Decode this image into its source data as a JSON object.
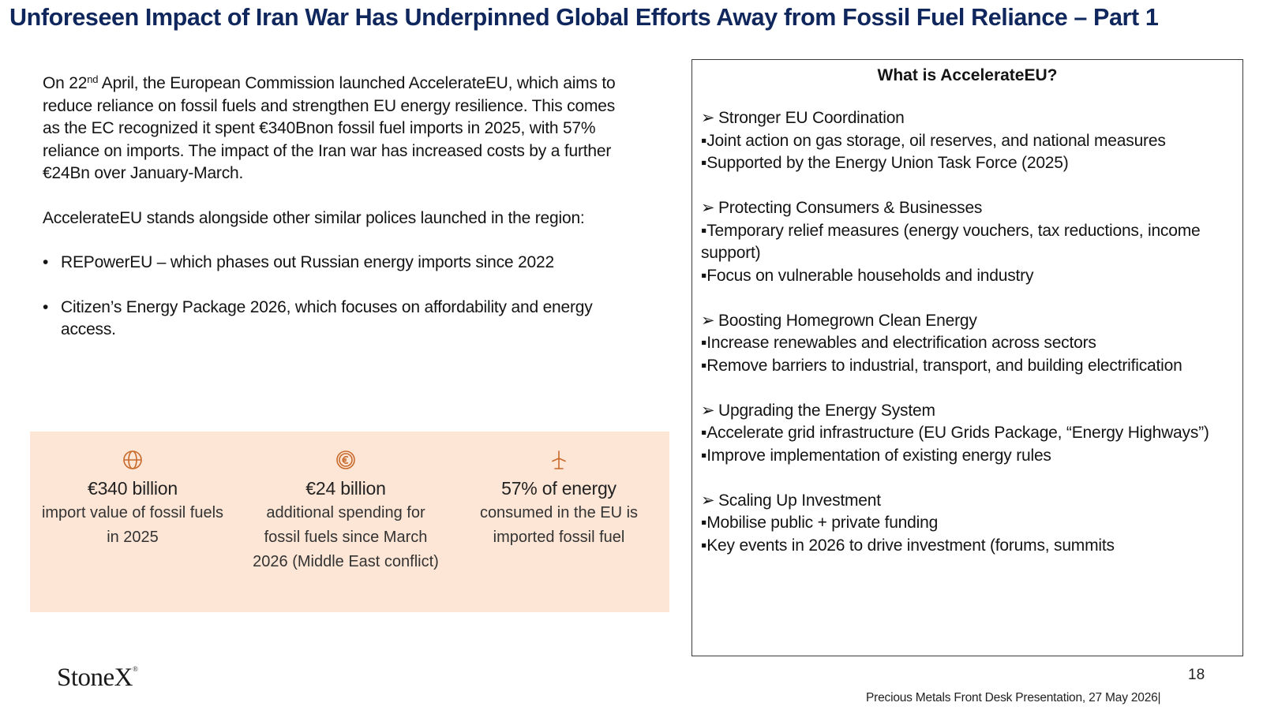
{
  "title": "Unforeseen Impact of Iran War Has Underpinned Global Efforts Away from Fossil Fuel Reliance – Part 1",
  "left": {
    "para1_a": "On 22",
    "para1_sup": "nd",
    "para1_b": " April, the European Commission launched AccelerateEU, which aims to reduce reliance on fossil fuels and strengthen EU energy resilience. This comes as the EC recognized it spent €340Bnon fossil fuel imports in 2025, with 57% reliance on imports. The impact of the Iran war has increased costs by a further €24Bn over January-March.",
    "para2": "AccelerateEU stands alongside other similar polices launched in the region:",
    "bullet_char": "•",
    "bullets": [
      "REPowerEU – which phases out Russian energy imports since 2022",
      "Citizen’s Energy Package 2026, which focuses on affordability and energy access."
    ]
  },
  "stats": {
    "background": "#fde6d6",
    "icon_color": "#c8692a",
    "items": [
      {
        "icon": "globe-icon",
        "value": "€340 billion",
        "desc": "import value of fossil fuels in 2025"
      },
      {
        "icon": "euro-coin-icon",
        "value": "€24 billion",
        "desc": "additional spending for fossil fuels since March 2026 (Middle East conflict)"
      },
      {
        "icon": "wind-turbine-icon",
        "value": "57% of energy",
        "desc": "consumed in the EU is imported fossil fuel"
      }
    ]
  },
  "box": {
    "title": "What is AccelerateEU?",
    "arrow": "➢",
    "sections": [
      {
        "head": "Stronger EU Coordination",
        "lines": [
          "▪Joint action on gas storage, oil reserves, and national measures",
          "▪Supported by the Energy Union Task Force (2025)"
        ]
      },
      {
        "head": "Protecting Consumers & Businesses",
        "lines": [
          "▪Temporary relief measures (energy vouchers, tax reductions, income support)",
          "▪Focus on vulnerable households and industry"
        ]
      },
      {
        "head": "Boosting Homegrown Clean Energy",
        "lines": [
          "▪Increase renewables and electrification across sectors",
          "▪Remove barriers to industrial, transport, and building electrification"
        ]
      },
      {
        "head": "Upgrading the Energy System",
        "lines": [
          "▪Accelerate grid infrastructure (EU Grids Package, “Energy Highways”)",
          "▪Improve implementation of existing energy rules"
        ]
      },
      {
        "head": "Scaling Up Investment",
        "lines": [
          "▪Mobilise public + private funding",
          "▪Key events in 2026 to drive investment (forums, summits"
        ]
      }
    ]
  },
  "footer": {
    "logo": "StoneX",
    "logo_mark": "®",
    "page": "18",
    "text": "Precious Metals Front Desk Presentation, 27 May 2026|"
  }
}
